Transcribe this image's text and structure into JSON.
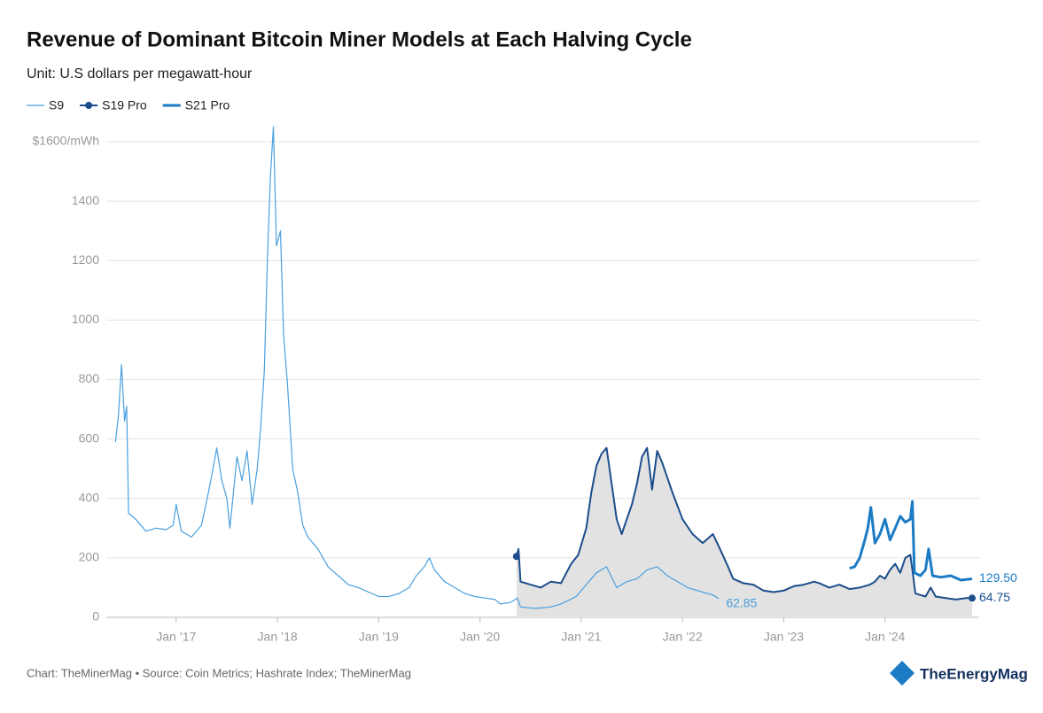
{
  "chart_data": {
    "type": "line",
    "title": "Revenue of Dominant Bitcoin Miner Models at Each Halving Cycle",
    "subtitle": "Unit: U.S dollars per megawatt-hour",
    "source": "Chart: TheMinerMag • Source: Coin Metrics; Hashrate Index; TheMinerMag",
    "logo": "TheEnergyMag",
    "xlim": [
      2016.31,
      2024.93
    ],
    "xticks": [
      {
        "value": 2017,
        "label": "Jan ’17"
      },
      {
        "value": 2018,
        "label": "Jan ’18"
      },
      {
        "value": 2019,
        "label": "Jan ’19"
      },
      {
        "value": 2020,
        "label": "Jan ’20"
      },
      {
        "value": 2021,
        "label": "Jan ’21"
      },
      {
        "value": 2022,
        "label": "Jan ’22"
      },
      {
        "value": 2023,
        "label": "Jan ’23"
      },
      {
        "value": 2024,
        "label": "Jan ’24"
      }
    ],
    "ylim": [
      0,
      1600
    ],
    "yticks": [
      0,
      200,
      400,
      600,
      800,
      1000,
      1200,
      1400,
      {
        "value": 1600,
        "label": "$1600/mWh"
      }
    ],
    "grid": true,
    "legend": "top-left",
    "series": [
      {
        "name": "S9",
        "color": "#4aa0df",
        "width": 1.2,
        "shaded": false,
        "x": [
          2016.4,
          2016.43,
          2016.46,
          2016.49,
          2016.51,
          2016.53,
          2016.6,
          2016.7,
          2016.8,
          2016.9,
          2016.97,
          2017.0,
          2017.05,
          2017.15,
          2017.25,
          2017.33,
          2017.4,
          2017.45,
          2017.5,
          2017.53,
          2017.6,
          2017.65,
          2017.7,
          2017.75,
          2017.8,
          2017.83,
          2017.87,
          2017.9,
          2017.93,
          2017.96,
          2017.99,
          2018.03,
          2018.06,
          2018.1,
          2018.15,
          2018.2,
          2018.25,
          2018.3,
          2018.4,
          2018.5,
          2018.6,
          2018.7,
          2018.8,
          2018.9,
          2019.0,
          2019.1,
          2019.2,
          2019.3,
          2019.37,
          2019.45,
          2019.5,
          2019.55,
          2019.65,
          2019.75,
          2019.85,
          2019.95,
          2020.05,
          2020.15,
          2020.2,
          2020.3,
          2020.37,
          2020.4,
          2020.55,
          2020.7,
          2020.8,
          2020.95,
          2021.05,
          2021.15,
          2021.25,
          2021.35,
          2021.45,
          2021.55,
          2021.65,
          2021.75,
          2021.85,
          2021.95,
          2022.05,
          2022.2,
          2022.3,
          2022.36
        ],
        "values": [
          590,
          680,
          850,
          660,
          710,
          350,
          330,
          290,
          300,
          295,
          310,
          380,
          290,
          270,
          310,
          440,
          570,
          460,
          400,
          300,
          540,
          460,
          560,
          380,
          500,
          620,
          830,
          1200,
          1480,
          1650,
          1250,
          1300,
          950,
          780,
          500,
          420,
          310,
          270,
          230,
          170,
          140,
          110,
          100,
          85,
          70,
          70,
          80,
          100,
          140,
          170,
          200,
          160,
          120,
          100,
          80,
          70,
          65,
          60,
          45,
          50,
          65,
          35,
          30,
          35,
          45,
          70,
          110,
          150,
          170,
          100,
          120,
          130,
          160,
          170,
          140,
          120,
          100,
          85,
          75,
          62.85
        ],
        "value_labels": [
          null,
          null,
          null,
          null,
          null,
          null,
          null,
          null,
          null,
          null,
          null,
          null,
          null,
          null,
          null,
          null,
          null,
          null,
          null,
          null,
          null,
          null,
          null,
          null,
          null,
          null,
          null,
          null,
          null,
          null,
          null,
          null,
          null,
          null,
          null,
          null,
          null,
          null,
          null,
          null,
          null,
          null,
          null,
          null,
          null,
          null,
          null,
          null,
          null,
          null,
          null,
          null,
          null,
          null,
          null,
          null,
          null,
          null,
          null,
          null,
          null,
          null,
          null,
          null,
          null,
          null,
          null,
          null,
          null,
          null,
          null,
          null,
          null,
          null,
          null,
          null,
          null,
          null,
          null,
          "62.85"
        ]
      },
      {
        "name": "S19 Pro",
        "color": "#1b4d8c",
        "width": 2,
        "shaded": true,
        "marker": true,
        "x": [
          2020.36,
          2020.38,
          2020.4,
          2020.5,
          2020.6,
          2020.7,
          2020.8,
          2020.9,
          2020.97,
          2021.05,
          2021.1,
          2021.15,
          2021.2,
          2021.25,
          2021.3,
          2021.35,
          2021.4,
          2021.45,
          2021.5,
          2021.55,
          2021.6,
          2021.65,
          2021.7,
          2021.75,
          2021.8,
          2021.85,
          2021.9,
          2022.0,
          2022.1,
          2022.2,
          2022.3,
          2022.37,
          2022.45,
          2022.5,
          2022.6,
          2022.7,
          2022.8,
          2022.9,
          2023.0,
          2023.1,
          2023.2,
          2023.3,
          2023.35,
          2023.45,
          2023.55,
          2023.65,
          2023.75,
          2023.85,
          2023.9,
          2023.95,
          2024.0,
          2024.05,
          2024.1,
          2024.15,
          2024.2,
          2024.25,
          2024.27,
          2024.3,
          2024.4,
          2024.45,
          2024.5,
          2024.6,
          2024.7,
          2024.8,
          2024.86
        ],
        "values": [
          205,
          230,
          120,
          110,
          100,
          120,
          115,
          180,
          210,
          300,
          420,
          510,
          550,
          570,
          450,
          330,
          280,
          330,
          380,
          450,
          540,
          570,
          430,
          560,
          520,
          470,
          420,
          330,
          280,
          250,
          280,
          230,
          170,
          130,
          115,
          110,
          90,
          85,
          90,
          105,
          110,
          120,
          115,
          100,
          110,
          95,
          100,
          110,
          120,
          140,
          130,
          160,
          180,
          150,
          200,
          210,
          160,
          80,
          70,
          100,
          70,
          65,
          60,
          65,
          64.75
        ],
        "value_labels": [
          null,
          null,
          null,
          null,
          null,
          null,
          null,
          null,
          null,
          null,
          null,
          null,
          null,
          null,
          null,
          null,
          null,
          null,
          null,
          null,
          null,
          null,
          null,
          null,
          null,
          null,
          null,
          null,
          null,
          null,
          null,
          null,
          null,
          null,
          null,
          null,
          null,
          null,
          null,
          null,
          null,
          null,
          null,
          null,
          null,
          null,
          null,
          null,
          null,
          null,
          null,
          null,
          null,
          null,
          null,
          null,
          null,
          null,
          null,
          null,
          null,
          null,
          null,
          null,
          "64.75"
        ]
      },
      {
        "name": "S21 Pro",
        "color": "#1b7bc4",
        "width": 3,
        "shaded": false,
        "x": [
          2023.65,
          2023.7,
          2023.75,
          2023.8,
          2023.83,
          2023.86,
          2023.9,
          2023.95,
          2024.0,
          2024.05,
          2024.1,
          2024.15,
          2024.2,
          2024.25,
          2024.27,
          2024.29,
          2024.35,
          2024.4,
          2024.43,
          2024.47,
          2024.55,
          2024.65,
          2024.75,
          2024.86
        ],
        "values": [
          165,
          170,
          200,
          260,
          300,
          370,
          250,
          280,
          330,
          260,
          300,
          340,
          320,
          330,
          390,
          150,
          140,
          160,
          230,
          140,
          135,
          140,
          125,
          129.5
        ],
        "value_labels": [
          null,
          null,
          null,
          null,
          null,
          null,
          null,
          null,
          null,
          null,
          null,
          null,
          null,
          null,
          null,
          null,
          null,
          null,
          null,
          null,
          null,
          null,
          null,
          "129.50"
        ]
      }
    ]
  }
}
